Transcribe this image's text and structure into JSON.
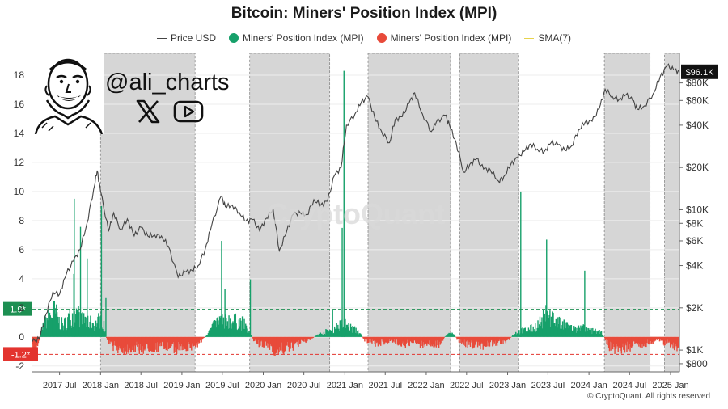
{
  "chart_data": {
    "type": "line",
    "title": "Bitcoin: Miners' Position Index (MPI)",
    "legend": [
      {
        "name": "Price USD",
        "color": "#444444",
        "marker": "line"
      },
      {
        "name": "Miners' Position Index (MPI)",
        "color": "#16a06a",
        "marker": "dot"
      },
      {
        "name": "Miners' Position Index (MPI)",
        "color": "#e84a3a",
        "marker": "dot"
      },
      {
        "name": "SMA(7)",
        "color": "#e7d34b",
        "marker": "line"
      }
    ],
    "left_axis": {
      "range": [
        -2.4,
        19.5
      ],
      "ticks": [
        "18",
        "16",
        "14",
        "12",
        "10",
        "8",
        "6",
        "4",
        "2",
        "0",
        "-2"
      ]
    },
    "right_axis": {
      "scale": "log",
      "range": [
        700,
        130000
      ],
      "ticks": [
        "$80K",
        "$60K",
        "$40K",
        "$20K",
        "$10K",
        "$8K",
        "$6K",
        "$4K",
        "$2K",
        "$1K",
        "$800"
      ]
    },
    "x_axis": {
      "range": [
        "2017-03-01",
        "2025-02-10"
      ],
      "ticks": [
        "2017 Jul",
        "2018 Jan",
        "2018 Jul",
        "2019 Jan",
        "2019 Jul",
        "2020 Jan",
        "2020 Jul",
        "2021 Jan",
        "2021 Jul",
        "2022 Jan",
        "2022 Jul",
        "2023 Jan",
        "2023 Jul",
        "2024 Jan",
        "2024 Jul",
        "2025 Jan"
      ]
    },
    "thresholds": [
      {
        "label": "1.9*",
        "value": 1.9,
        "color": "#1d8f52"
      },
      {
        "label": "-1.2*",
        "value": -1.2,
        "color": "#e3342f"
      }
    ],
    "current_price_label": "$96.1K",
    "shaded_periods": [
      [
        "2018-01-01",
        "2019-03-01"
      ],
      [
        "2019-11-01",
        "2020-10-25"
      ],
      [
        "2021-04-15",
        "2022-04-20"
      ],
      [
        "2022-06-01",
        "2023-02-20"
      ],
      [
        "2024-03-10",
        "2024-10-01"
      ],
      [
        "2024-12-05",
        "2025-02-10"
      ]
    ],
    "price_series": {
      "name": "Price USD",
      "x": [
        "2017-03-01",
        "2017-04-01",
        "2017-05-01",
        "2017-06-01",
        "2017-07-01",
        "2017-08-01",
        "2017-09-01",
        "2017-10-01",
        "2017-11-01",
        "2017-12-01",
        "2017-12-17",
        "2018-01-01",
        "2018-02-06",
        "2018-03-01",
        "2018-04-01",
        "2018-05-01",
        "2018-06-01",
        "2018-07-01",
        "2018-08-01",
        "2018-09-01",
        "2018-10-01",
        "2018-11-01",
        "2018-12-15",
        "2019-01-15",
        "2019-02-15",
        "2019-03-15",
        "2019-04-15",
        "2019-05-15",
        "2019-06-26",
        "2019-07-15",
        "2019-08-15",
        "2019-09-15",
        "2019-10-15",
        "2019-11-15",
        "2019-12-15",
        "2020-01-15",
        "2020-02-14",
        "2020-03-13",
        "2020-04-15",
        "2020-05-15",
        "2020-06-15",
        "2020-07-15",
        "2020-08-15",
        "2020-09-15",
        "2020-10-15",
        "2020-11-15",
        "2020-12-15",
        "2021-01-08",
        "2021-02-15",
        "2021-03-15",
        "2021-04-14",
        "2021-05-15",
        "2021-06-15",
        "2021-07-20",
        "2021-08-15",
        "2021-09-15",
        "2021-10-15",
        "2021-11-10",
        "2021-12-15",
        "2022-01-24",
        "2022-02-15",
        "2022-03-28",
        "2022-04-15",
        "2022-05-15",
        "2022-06-18",
        "2022-07-15",
        "2022-08-15",
        "2022-09-15",
        "2022-10-15",
        "2022-11-21",
        "2022-12-15",
        "2023-01-15",
        "2023-02-15",
        "2023-03-15",
        "2023-04-15",
        "2023-05-15",
        "2023-06-15",
        "2023-07-15",
        "2023-08-15",
        "2023-09-15",
        "2023-10-15",
        "2023-11-15",
        "2023-12-15",
        "2024-01-15",
        "2024-02-15",
        "2024-03-14",
        "2024-04-15",
        "2024-05-15",
        "2024-06-15",
        "2024-07-15",
        "2024-08-05",
        "2024-09-06",
        "2024-10-15",
        "2024-11-15",
        "2024-12-17",
        "2025-01-15",
        "2025-02-10"
      ],
      "y": [
        1150,
        1200,
        1800,
        2600,
        2500,
        3500,
        4300,
        5200,
        8000,
        14000,
        19000,
        13500,
        7000,
        9500,
        7200,
        8600,
        6500,
        7500,
        6500,
        6600,
        6500,
        5500,
        3300,
        3600,
        3700,
        4000,
        5200,
        7800,
        12500,
        10500,
        10800,
        9600,
        8300,
        8500,
        7100,
        8700,
        10200,
        5100,
        7000,
        9300,
        9500,
        9200,
        11800,
        10800,
        11500,
        17500,
        20000,
        40000,
        48000,
        58000,
        64000,
        45000,
        36000,
        30000,
        44000,
        46000,
        57000,
        68000,
        48000,
        36000,
        42000,
        47000,
        40000,
        30000,
        18500,
        21000,
        23000,
        19500,
        19300,
        16000,
        17200,
        21000,
        23500,
        26000,
        29500,
        27000,
        26000,
        30000,
        29000,
        26500,
        28500,
        37000,
        42000,
        42700,
        52000,
        72000,
        64000,
        61000,
        66000,
        60000,
        52000,
        55000,
        67000,
        88000,
        106000,
        99000,
        96100
      ]
    },
    "mpi_series": {
      "name": "Miners' Position Index (MPI)",
      "x": [
        "2017-03-01",
        "2017-03-20",
        "2017-04-10",
        "2017-05-01",
        "2017-05-20",
        "2017-06-10",
        "2017-07-01",
        "2017-07-20",
        "2017-08-10",
        "2017-09-01",
        "2017-09-20",
        "2017-10-10",
        "2017-11-01",
        "2017-11-20",
        "2017-12-10",
        "2018-01-01",
        "2018-01-15",
        "2018-02-01",
        "2018-03-01",
        "2018-04-01",
        "2018-05-01",
        "2018-06-01",
        "2018-07-01",
        "2018-08-01",
        "2018-09-01",
        "2018-10-01",
        "2018-11-01",
        "2018-12-01",
        "2019-01-01",
        "2019-02-01",
        "2019-03-05",
        "2019-04-01",
        "2019-05-01",
        "2019-06-01",
        "2019-07-01",
        "2019-08-01",
        "2019-09-01",
        "2019-10-01",
        "2019-11-01",
        "2019-12-01",
        "2020-01-01",
        "2020-02-01",
        "2020-03-01",
        "2020-04-01",
        "2020-05-01",
        "2020-06-01",
        "2020-07-01",
        "2020-08-01",
        "2020-09-01",
        "2020-10-01",
        "2020-11-01",
        "2020-12-01",
        "2021-01-01",
        "2021-02-01",
        "2021-03-01",
        "2021-04-01",
        "2021-05-01",
        "2021-06-01",
        "2021-07-01",
        "2021-08-01",
        "2021-09-01",
        "2021-10-01",
        "2021-11-01",
        "2021-12-01",
        "2022-01-01",
        "2022-02-01",
        "2022-03-01",
        "2022-04-01",
        "2022-05-01",
        "2022-06-01",
        "2022-07-01",
        "2022-08-01",
        "2022-09-01",
        "2022-10-01",
        "2022-11-01",
        "2022-12-01",
        "2023-01-01",
        "2023-02-01",
        "2023-03-01",
        "2023-04-01",
        "2023-05-01",
        "2023-06-01",
        "2023-07-01",
        "2023-08-01",
        "2023-09-01",
        "2023-10-01",
        "2023-11-01",
        "2023-12-01",
        "2024-01-01",
        "2024-02-01",
        "2024-03-01",
        "2024-04-01",
        "2024-05-01",
        "2024-06-01",
        "2024-07-01",
        "2024-08-01",
        "2024-09-01",
        "2024-10-01",
        "2024-11-01",
        "2024-12-01",
        "2025-01-01",
        "2025-02-01"
      ],
      "y": [
        -1.5,
        -1.0,
        0.5,
        1.4,
        1.8,
        2.2,
        1.2,
        1.0,
        1.6,
        1.8,
        1.9,
        1.5,
        1.3,
        1.2,
        1.1,
        1.6,
        1.0,
        -0.4,
        -0.8,
        -1.0,
        -1.0,
        -0.9,
        -1.0,
        -0.9,
        -0.9,
        -0.8,
        -0.9,
        -1.0,
        -0.8,
        -0.9,
        -0.7,
        -0.3,
        0.4,
        1.1,
        1.6,
        1.4,
        1.3,
        1.2,
        0.3,
        -0.6,
        -0.7,
        -0.8,
        -1.2,
        -1.0,
        -0.9,
        -0.6,
        -0.4,
        -0.2,
        0.2,
        0.4,
        0.6,
        0.9,
        1.1,
        0.7,
        0.5,
        -0.3,
        -0.5,
        -0.6,
        -0.4,
        -0.4,
        -0.5,
        -0.6,
        -0.5,
        -0.6,
        -0.6,
        -0.6,
        -0.7,
        0.2,
        0.3,
        -0.5,
        -0.6,
        -0.7,
        -0.8,
        -0.6,
        -0.5,
        -0.5,
        -0.4,
        0.3,
        0.5,
        0.6,
        0.8,
        1.3,
        2.0,
        1.4,
        1.0,
        0.9,
        0.6,
        0.8,
        0.5,
        0.5,
        0.3,
        -0.8,
        -1.0,
        -1.0,
        -0.9,
        -0.7,
        -0.6,
        -0.5,
        -0.2,
        -0.5,
        -0.6,
        -1.1
      ]
    }
  },
  "handle": "@ali_charts",
  "icons": [
    "x-logo-icon",
    "youtube-icon"
  ],
  "watermark": "CryptoQuant",
  "copyright": "© CryptoQuant. All rights reserved"
}
